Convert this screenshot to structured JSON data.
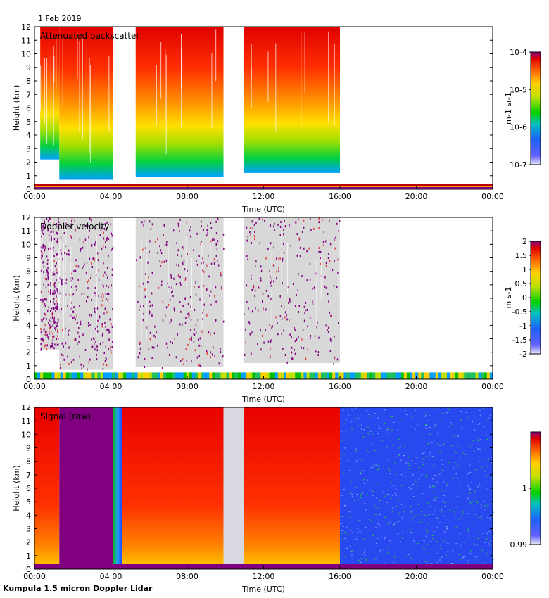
{
  "header": {
    "date": "1 Feb 2019"
  },
  "footer": {
    "instrument": "Kumpula 1.5 micron Doppler Lidar"
  },
  "chart_data": [
    {
      "type": "heatmap",
      "title": "Attenuated backscatter",
      "xlabel": "Time (UTC)",
      "ylabel": "Height (km)",
      "xlim": [
        0,
        24
      ],
      "ylim": [
        0,
        12
      ],
      "xticks": [
        "00:00",
        "04:00",
        "08:00",
        "12:00",
        "16:00",
        "20:00",
        "00:00"
      ],
      "yticks": [
        0,
        1,
        2,
        3,
        4,
        5,
        6,
        7,
        8,
        9,
        10,
        11,
        12
      ],
      "colorbar": {
        "scale": "log",
        "range": [
          1e-07,
          0.0001
        ],
        "ticks": [
          "10-7",
          "10-6",
          "10-5",
          "10-4"
        ],
        "label": "m-1 sr-1"
      },
      "data_segments_hours": [
        [
          0.3,
          1.3
        ],
        [
          1.3,
          4.1
        ],
        [
          5.3,
          9.9
        ],
        [
          10.95,
          16.0
        ]
      ],
      "data_top_km": 12,
      "data_bottom_km": [
        2.2,
        0.7,
        0.9,
        1.2
      ],
      "boundary_layer_km": 0.4
    },
    {
      "type": "heatmap",
      "title": "Doppler velocity",
      "xlabel": "Time (UTC)",
      "ylabel": "Height (km)",
      "xlim": [
        0,
        24
      ],
      "ylim": [
        0,
        12
      ],
      "xticks": [
        "00:00",
        "04:00",
        "08:00",
        "12:00",
        "16:00",
        "20:00",
        "00:00"
      ],
      "yticks": [
        0,
        1,
        2,
        3,
        4,
        5,
        6,
        7,
        8,
        9,
        10,
        11,
        12
      ],
      "colorbar": {
        "scale": "linear",
        "range": [
          -2,
          2
        ],
        "ticks": [
          "-2",
          "-1.5",
          "-1",
          "-0.5",
          "0",
          "0.5",
          "1",
          "1.5",
          "2"
        ],
        "label": "m s-1"
      },
      "data_segments_hours": [
        [
          0.3,
          1.3
        ],
        [
          1.3,
          4.1
        ],
        [
          5.3,
          9.9
        ],
        [
          10.95,
          16.0
        ]
      ],
      "data_top_km": 12,
      "data_bottom_km": [
        2.2,
        0.7,
        0.9,
        1.2
      ],
      "boundary_layer_km": 0.5
    },
    {
      "type": "heatmap",
      "title": "Signal (raw)",
      "xlabel": "Time (UTC)",
      "ylabel": "Height (km)",
      "xlim": [
        0,
        24
      ],
      "ylim": [
        0,
        12
      ],
      "xticks": [
        "00:00",
        "04:00",
        "08:00",
        "12:00",
        "16:00",
        "20:00",
        "00:00"
      ],
      "yticks": [
        0,
        1,
        2,
        3,
        4,
        5,
        6,
        7,
        8,
        9,
        10,
        11,
        12
      ],
      "colorbar": {
        "scale": "linear",
        "range": [
          0.99,
          1.01
        ],
        "ticks": [
          "0.99",
          "1"
        ],
        "label": ""
      },
      "regions_hours": [
        {
          "from": 0,
          "to": 1.3,
          "fill": "red-yellow"
        },
        {
          "from": 1.3,
          "to": 4.1,
          "fill": "purple"
        },
        {
          "from": 4.1,
          "to": 4.6,
          "fill": "green-blue"
        },
        {
          "from": 4.6,
          "to": 9.9,
          "fill": "red-orange"
        },
        {
          "from": 9.9,
          "to": 10.95,
          "fill": "gray"
        },
        {
          "from": 10.95,
          "to": 16.0,
          "fill": "red-orange"
        },
        {
          "from": 16.0,
          "to": 24,
          "fill": "blue"
        }
      ]
    }
  ]
}
